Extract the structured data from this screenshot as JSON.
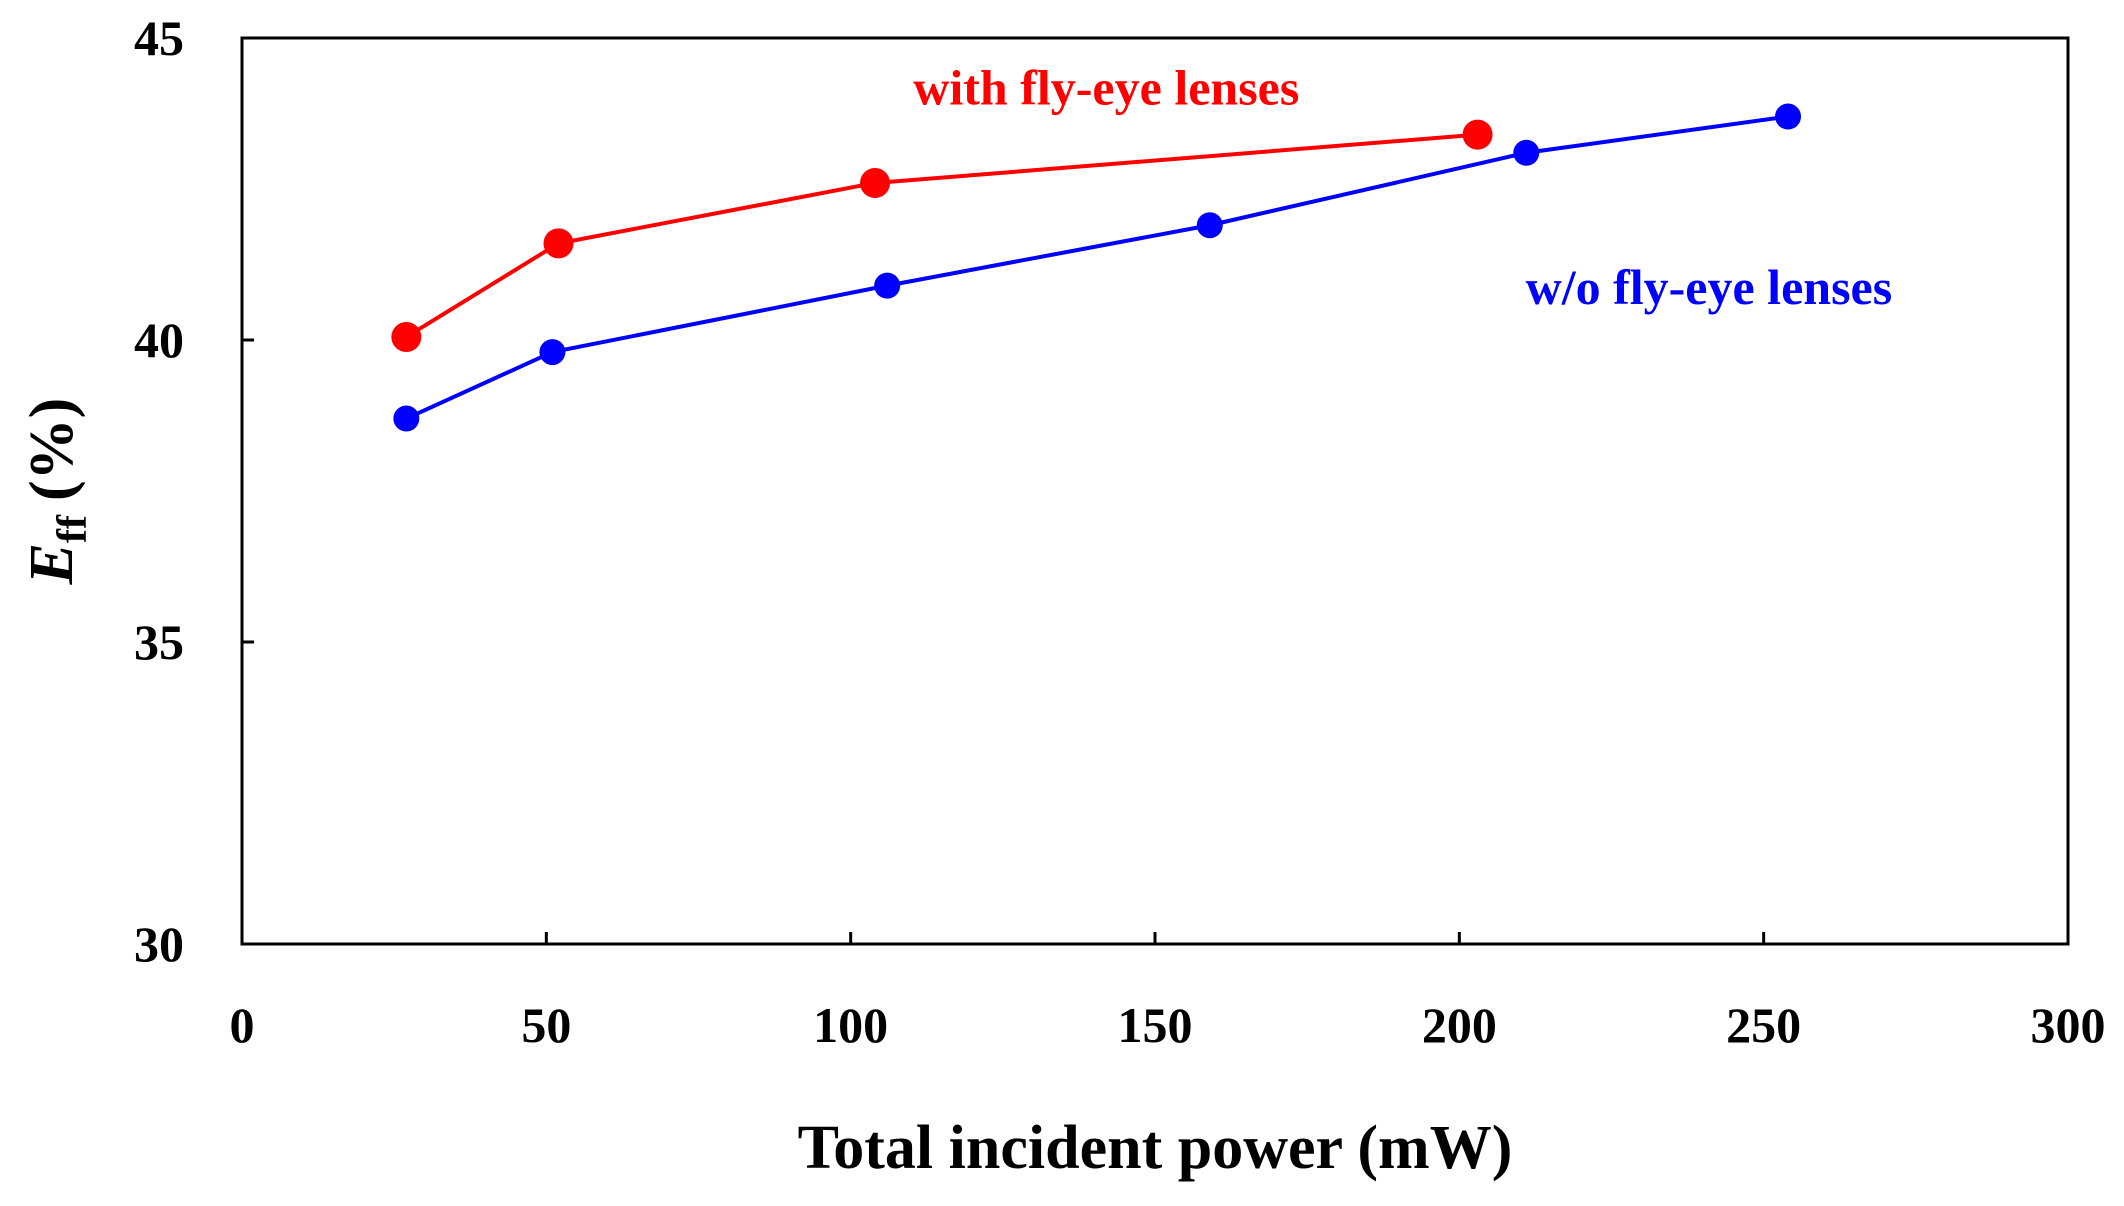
{
  "chart_data": {
    "type": "line",
    "title": "",
    "xlabel": "Total incident power (mW)",
    "ylabel_main": "E",
    "ylabel_sub": "ff",
    "ylabel_unit": "(%)",
    "xlim": [
      0,
      300
    ],
    "ylim": [
      30,
      45
    ],
    "x_ticks": [
      0,
      50,
      100,
      150,
      200,
      250,
      300
    ],
    "y_ticks": [
      30,
      35,
      40,
      45
    ],
    "x_tick_labels": [
      "0",
      "50",
      "100",
      "150",
      "200",
      "250",
      "300"
    ],
    "y_tick_labels": [
      "30",
      "35",
      "40",
      "45"
    ],
    "grid": false,
    "series": [
      {
        "name": "with fly-eye lenses",
        "color": "#ff0000",
        "x": [
          27,
          52,
          104,
          203
        ],
        "y": [
          40.05,
          41.6,
          42.6,
          43.4
        ]
      },
      {
        "name": "w/o fly-eye lenses",
        "color": "#0000ff",
        "x": [
          27,
          51,
          106,
          159,
          211,
          254
        ],
        "y": [
          38.7,
          39.8,
          40.9,
          41.9,
          43.1,
          43.7
        ]
      }
    ],
    "annotations": [
      {
        "text": "with fly-eye lenses",
        "color": "#ff0000",
        "anchor_x": 142,
        "anchor_y": 43.9
      },
      {
        "text": "w/o fly-eye lenses",
        "color": "#0000ff",
        "anchor_x": 241,
        "anchor_y": 40.6
      }
    ]
  }
}
